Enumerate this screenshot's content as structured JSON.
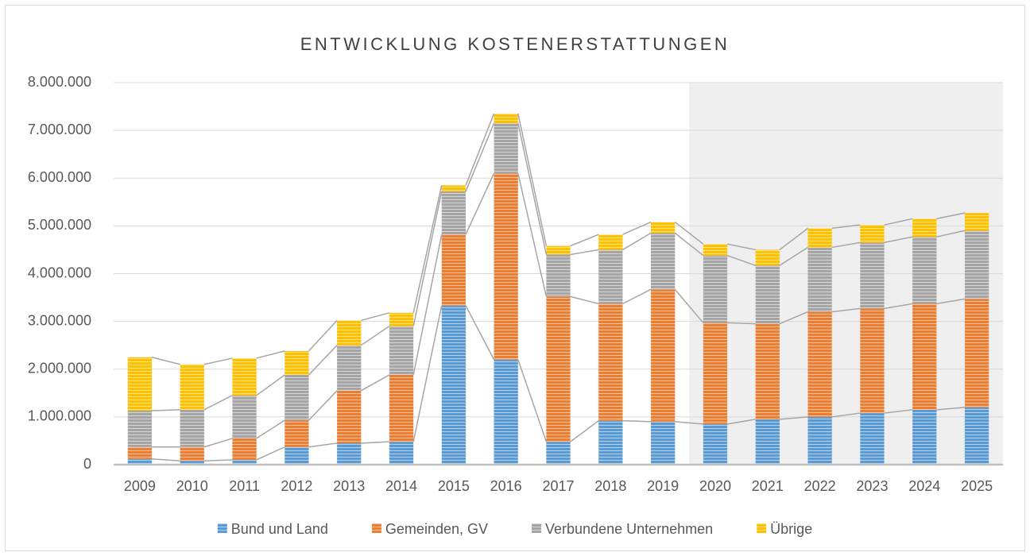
{
  "chart_data": {
    "type": "stacked_bar",
    "title": "ENTWICKLUNG KOSTENERSTATTUNGEN",
    "categories": [
      "2009",
      "2010",
      "2011",
      "2012",
      "2013",
      "2014",
      "2015",
      "2016",
      "2017",
      "2018",
      "2019",
      "2020",
      "2021",
      "2022",
      "2023",
      "2024",
      "2025"
    ],
    "series": [
      {
        "name": "Bund und Land",
        "color": "#5b9bd5",
        "values": [
          120000,
          80000,
          100000,
          370000,
          450000,
          480000,
          3330000,
          2200000,
          480000,
          920000,
          900000,
          850000,
          950000,
          1000000,
          1080000,
          1150000,
          1200000
        ]
      },
      {
        "name": "Gemeinden, GV",
        "color": "#ed7d31",
        "values": [
          250000,
          290000,
          450000,
          560000,
          1100000,
          1400000,
          1490000,
          3900000,
          3040000,
          2450000,
          2770000,
          2120000,
          2000000,
          2200000,
          2190000,
          2220000,
          2270000
        ]
      },
      {
        "name": "Verbundene Unternehmen",
        "color": "#a5a5a5",
        "values": [
          760000,
          780000,
          900000,
          950000,
          950000,
          1020000,
          900000,
          1050000,
          880000,
          1130000,
          1180000,
          1410000,
          1220000,
          1350000,
          1380000,
          1400000,
          1430000
        ]
      },
      {
        "name": "Übrige",
        "color": "#ffc000",
        "values": [
          1120000,
          950000,
          780000,
          500000,
          520000,
          280000,
          130000,
          200000,
          180000,
          320000,
          230000,
          240000,
          330000,
          400000,
          370000,
          380000,
          370000
        ]
      }
    ],
    "ylim": [
      0,
      8000000
    ],
    "yticks": [
      0,
      {
        "value": 1000000,
        "label": "1.000.000"
      },
      {
        "value": 2000000,
        "label": "2.000.000"
      },
      {
        "value": 3000000,
        "label": "3.000.000"
      },
      {
        "value": 4000000,
        "label": "4.000.000"
      },
      {
        "value": 5000000,
        "label": "5.000.000"
      },
      {
        "value": 6000000,
        "label": "6.000.000"
      },
      {
        "value": 7000000,
        "label": "7.000.000"
      },
      {
        "value": 8000000,
        "label": "8.000.000"
      }
    ],
    "grid": true,
    "legend": "bottom",
    "shaded_from": "2020"
  }
}
